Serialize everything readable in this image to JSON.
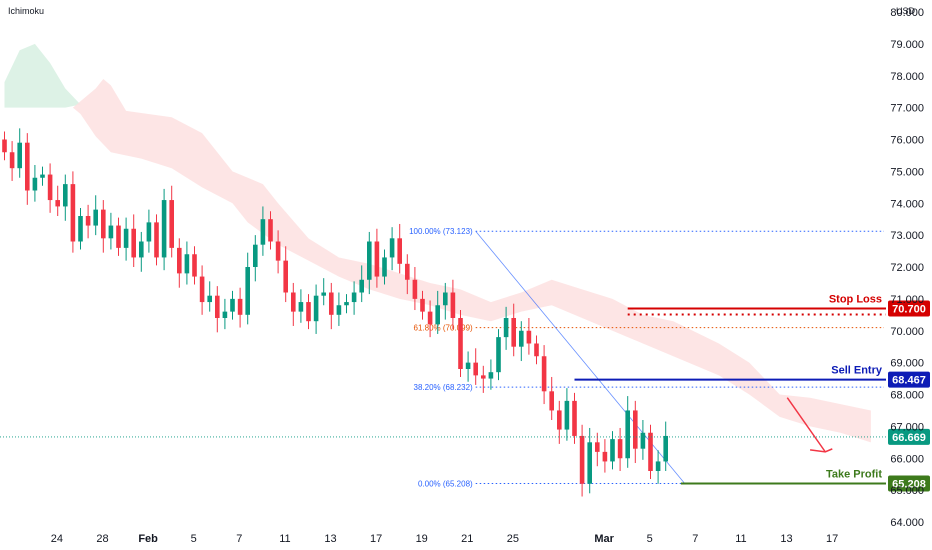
{
  "chart_data": {
    "type": "candlestick",
    "indicator_label": "Ichimoku",
    "currency_label": "USD",
    "y_ticks": [
      "64.000",
      "65.000",
      "66.000",
      "67.000",
      "68.000",
      "69.000",
      "70.000",
      "71.000",
      "72.000",
      "73.000",
      "74.000",
      "75.000",
      "76.000",
      "77.000",
      "78.000",
      "79.000",
      "80.000"
    ],
    "ylim": [
      63.6,
      80.3
    ],
    "x_ticks": [
      {
        "label": "24",
        "i": 4
      },
      {
        "label": "28",
        "i": 10
      },
      {
        "label": "Feb",
        "i": 16
      },
      {
        "label": "5",
        "i": 22
      },
      {
        "label": "7",
        "i": 28
      },
      {
        "label": "11",
        "i": 34
      },
      {
        "label": "13",
        "i": 40
      },
      {
        "label": "17",
        "i": 46
      },
      {
        "label": "19",
        "i": 52
      },
      {
        "label": "21",
        "i": 58
      },
      {
        "label": "25",
        "i": 64
      },
      {
        "label": "Mar",
        "i": 76
      },
      {
        "label": "5",
        "i": 82
      },
      {
        "label": "7",
        "i": 88
      },
      {
        "label": "11",
        "i": 94
      },
      {
        "label": "13",
        "i": 100
      },
      {
        "label": "17",
        "i": 106
      }
    ],
    "close_path": [
      75.6,
      75.1,
      75.9,
      74.4,
      74.8,
      74.9,
      74.1,
      73.9,
      74.6,
      72.8,
      73.6,
      73.3,
      73.8,
      72.9,
      73.3,
      72.6,
      73.2,
      72.3,
      72.8,
      73.4,
      72.3,
      74.1,
      72.6,
      71.8,
      72.4,
      71.7,
      70.9,
      71.1,
      70.4,
      70.6,
      71.0,
      70.5,
      72.0,
      72.7,
      73.5,
      72.8,
      72.2,
      71.2,
      70.6,
      70.9,
      70.3,
      71.1,
      71.2,
      70.5,
      70.8,
      70.9,
      71.2,
      71.6,
      72.8,
      71.7,
      72.3,
      72.9,
      72.1,
      71.6,
      71.0,
      70.6,
      70.2,
      70.8,
      71.2,
      70.4,
      68.8,
      69.0,
      68.6,
      68.5,
      68.7,
      69.8,
      70.4,
      69.5,
      70.0,
      69.6,
      69.2,
      68.1,
      67.5,
      66.9,
      67.8,
      66.7,
      65.2,
      66.5,
      66.2,
      65.9,
      66.6,
      66.0,
      67.5,
      66.3,
      66.8,
      65.6,
      65.9,
      66.7
    ],
    "fib_levels": [
      {
        "label": "100.00% (73.123)",
        "value": 73.123,
        "color": "#2962ff"
      },
      {
        "label": "61.80% (70.099)",
        "value": 70.099,
        "color": "#e65100"
      },
      {
        "label": "38.20% (68.232)",
        "value": 68.232,
        "color": "#2962ff"
      },
      {
        "label": "0.00% (65.208)",
        "value": 65.208,
        "color": "#2962ff"
      }
    ],
    "trade_levels": [
      {
        "label": "Stop Loss",
        "value": 70.7,
        "tag": "70.700",
        "color": "#d50000"
      },
      {
        "label": "Sell Entry",
        "value": 68.467,
        "tag": "68.467",
        "color": "#0d1cb6"
      },
      {
        "label": "Take Profit",
        "value": 65.208,
        "tag": "65.208",
        "color": "#3d7a1c"
      }
    ],
    "last_price": {
      "value": 66.669,
      "tag": "66.669",
      "color": "#089981"
    },
    "colors": {
      "up": "#089981",
      "down": "#f23645",
      "cloud_red": "#fde1e1",
      "cloud_green": "#d9f1e3"
    }
  }
}
